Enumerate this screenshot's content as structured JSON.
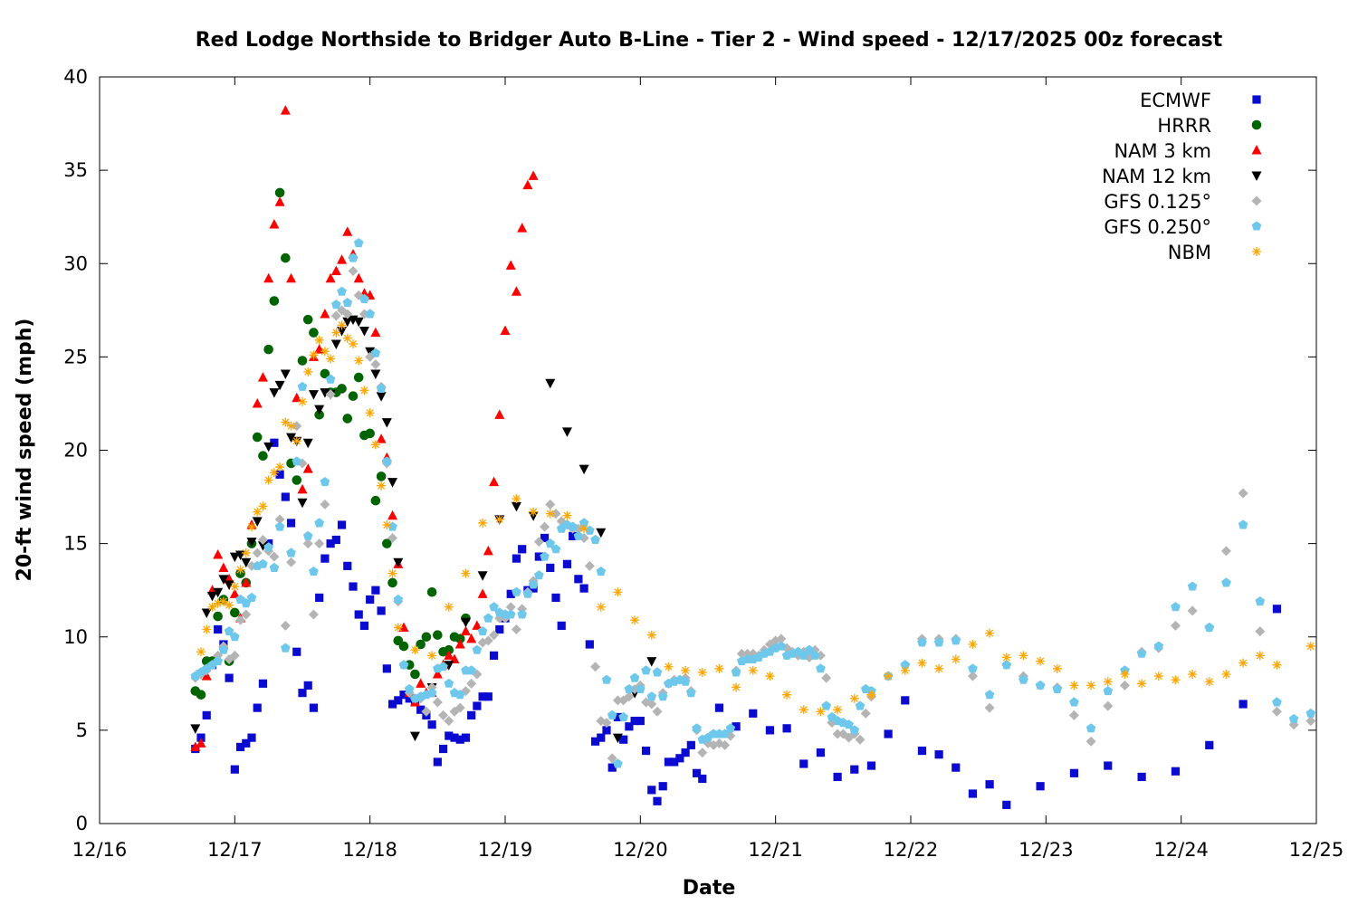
{
  "chart_data": {
    "type": "scatter",
    "title": "Red Lodge Northside to Bridger Auto B-Line - Tier 2 - Wind speed - 12/17/2025 00z forecast",
    "xlabel": "Date",
    "ylabel": "20-ft wind speed (mph)",
    "x_units": "hours since 12/16 00:00",
    "xlim": [
      0,
      216
    ],
    "ylim": [
      0,
      40
    ],
    "yticks": [
      "0",
      "5",
      "10",
      "15",
      "20",
      "25",
      "30",
      "35",
      "40"
    ],
    "xticks": [
      "12/16",
      "12/17",
      "12/18",
      "12/19",
      "12/20",
      "12/21",
      "12/22",
      "12/23",
      "12/24",
      "12/25"
    ],
    "grid": false,
    "legend_position": "top-right",
    "series": [
      {
        "name": "ECMWF",
        "marker": "square",
        "color": "#0a0ad0",
        "segments": [
          {
            "start": 17,
            "step": 1,
            "values": [
              4.0,
              4.6,
              5.8,
              8.5,
              10.4,
              9.6,
              7.8,
              2.9,
              4.1,
              4.3,
              4.6,
              6.2,
              7.5,
              15.0,
              20.4,
              18.7,
              17.5,
              16.1,
              9.2,
              7.0,
              7.4,
              6.2,
              12.1,
              14.2,
              15.0,
              15.2,
              16.0,
              13.8,
              12.7,
              11.2,
              10.6,
              12.0,
              12.5,
              11.4,
              8.3,
              6.4,
              6.6,
              6.9,
              6.7,
              6.5,
              6.1,
              5.8,
              5.3,
              3.3,
              4.0,
              4.7,
              4.6,
              4.5,
              4.6,
              5.8,
              6.3,
              6.8,
              6.8,
              9.0,
              10.4,
              11.0,
              12.3,
              14.2,
              14.7,
              12.5,
              12.6,
              14.3,
              15.3,
              13.7,
              12.1,
              10.6,
              13.9,
              15.4,
              13.1,
              12.6,
              9.6,
              4.4,
              4.6,
              5.0,
              3.0,
              5.7,
              4.5,
              5.2,
              5.5,
              5.5,
              3.9,
              1.8,
              1.2,
              2.0,
              3.3,
              3.3,
              3.5,
              3.8,
              4.2,
              2.7,
              2.4
            ]
          },
          {
            "start": 110,
            "step": 3,
            "values": [
              6.2,
              5.2,
              5.9,
              5.0,
              5.1,
              3.2,
              3.8,
              2.5,
              2.9,
              3.1,
              4.8,
              6.6,
              3.9,
              3.7,
              3.0,
              1.6,
              2.1,
              1.0
            ]
          },
          {
            "start": 167,
            "step": 6,
            "values": [
              2.0,
              2.7,
              3.1,
              2.5,
              2.8,
              4.2,
              6.4,
              11.5
            ]
          }
        ]
      },
      {
        "name": "HRRR",
        "marker": "circle",
        "color": "#006400",
        "segments": [
          {
            "start": 17,
            "step": 1,
            "values": [
              7.1,
              6.9,
              8.7,
              8.7,
              11.1,
              12.0,
              8.7,
              11.3,
              13.4,
              12.9,
              15.0,
              20.7,
              19.7,
              25.4,
              28.0,
              33.8,
              30.3,
              19.3,
              18.4,
              24.8,
              27.0,
              26.3,
              21.9,
              24.1,
              23.1,
              23.1,
              23.3,
              21.7,
              22.9,
              23.9,
              20.8,
              20.9,
              17.3,
              18.6,
              15.0,
              12.9,
              9.8,
              9.5,
              8.5,
              8.0,
              9.6,
              10.0,
              12.4,
              10.1,
              9.2,
              9.3,
              10.0,
              9.9,
              11.0
            ]
          }
        ]
      },
      {
        "name": "NAM 3 km",
        "marker": "triangle-up",
        "color": "#ff0000",
        "segments": [
          {
            "start": 17,
            "step": 1,
            "values": [
              4.1,
              4.3,
              7.9,
              12.5,
              14.4,
              13.7,
              13.1,
              12.3,
              11.0,
              12.9,
              16.0,
              22.5,
              23.9,
              29.2,
              32.1,
              33.3,
              38.2,
              29.2,
              22.8,
              17.9,
              19.0,
              25.0,
              25.4,
              27.3,
              29.2,
              29.6,
              30.2,
              31.7,
              30.5,
              29.2,
              28.4,
              28.3,
              26.3,
              20.6,
              19.6,
              16.5,
              13.9,
              10.5,
              7.0,
              6.5,
              7.5,
              7.0,
              7.0,
              8.0,
              8.5,
              9.0,
              8.8,
              9.6,
              10.3,
              9.9,
              10.6,
              12.3,
              14.6,
              18.3,
              21.9,
              26.4,
              29.9,
              28.5,
              31.9,
              34.2,
              34.7
            ]
          }
        ]
      },
      {
        "name": "NAM 12 km",
        "marker": "triangle-down",
        "color": "#000000",
        "segments": [
          {
            "start": 17,
            "step": 1,
            "values": [
              5.1,
              8.0,
              11.3,
              12.2,
              12.4,
              13.1,
              12.8,
              14.3,
              14.4,
              14.0,
              15.1,
              16.2,
              14.9,
              20.2,
              23.1,
              23.5,
              24.1,
              20.7,
              20.5,
              17.2,
              20.4,
              23.0,
              22.2,
              23.1,
              23.0,
              25.7,
              26.4,
              26.9,
              27.0,
              26.9,
              26.4,
              25.3,
              24.1,
              22.9,
              21.5,
              18.3,
              14.0
            ]
          },
          {
            "start": 56,
            "step": 3,
            "values": [
              4.7,
              7.3,
              8.5,
              10.8,
              13.3,
              16.3,
              17.0,
              16.5,
              23.6,
              21.0,
              19.0,
              15.6,
              4.6,
              7.0,
              8.7
            ]
          }
        ]
      },
      {
        "name": "GFS 0.125°",
        "marker": "diamond",
        "color": "#b4b4b4",
        "segments": [
          {
            "start": 17,
            "step": 1,
            "values": [
              7.8,
              8.0,
              8.2,
              8.5,
              9.0,
              9.5,
              8.8,
              9.0,
              10.9,
              11.2,
              13.8,
              14.5,
              15.2,
              14.6,
              14.3,
              16.3,
              10.6,
              14.0,
              21.3,
              19.3,
              15.0,
              11.2,
              15.0,
              17.1,
              23.0,
              27.2,
              27.5,
              27.3,
              29.6,
              28.3,
              27.3,
              25.0,
              24.6,
              23.4,
              19.3,
              15.3,
              11.9,
              8.5,
              7.0,
              6.7,
              6.7,
              6.0,
              7.3,
              6.5,
              5.8,
              5.5,
              6.0,
              6.2,
              7.1,
              7.5,
              8.0,
              9.7,
              9.8,
              10.1,
              11.0,
              11.0,
              11.6,
              10.4,
              11.5,
              12.4,
              13.0,
              15.1,
              15.9,
              17.1,
              16.6,
              16.2,
              16.0,
              15.8,
              15.8,
              15.3,
              13.8,
              8.4,
              5.5,
              5.4,
              3.5,
              6.6,
              6.6,
              6.8,
              7.2,
              7.4,
              6.5,
              6.4,
              6.0,
              7.0,
              7.5,
              7.7,
              7.7,
              7.8,
              7.1,
              5.0,
              3.8,
              4.3,
              4.2,
              4.3,
              4.2,
              4.7,
              8.2,
              9.1,
              9.1,
              9.1,
              9.0,
              9.3,
              9.6,
              9.8,
              9.9,
              9.4,
              9.2,
              9.0,
              9.2,
              8.9,
              9.3,
              9.0,
              7.8,
              5.4,
              4.8,
              4.8,
              4.6,
              4.8,
              4.5,
              5.9,
              6.8
            ]
          },
          {
            "start": 140,
            "step": 3,
            "values": [
              7.9,
              8.5,
              9.9,
              9.9,
              9.9,
              7.9,
              6.2,
              8.5,
              7.9,
              7.4,
              7.3,
              5.8,
              4.4,
              6.3,
              7.4,
              9.2,
              9.4,
              10.6,
              11.4,
              10.5,
              14.6,
              17.7,
              10.3,
              6.0,
              5.3,
              5.5
            ]
          }
        ]
      },
      {
        "name": "GFS 0.250°",
        "marker": "pentagon",
        "color": "#6ec8ec",
        "segments": [
          {
            "start": 17,
            "step": 1,
            "values": [
              7.9,
              8.1,
              8.3,
              8.5,
              8.7,
              9.3,
              10.3,
              10.0,
              12.0,
              11.8,
              12.1,
              13.8,
              13.9,
              14.8,
              13.7,
              15.9,
              9.4,
              14.5,
              19.4,
              23.4,
              15.4,
              13.5,
              16.1,
              18.3,
              23.8,
              27.8,
              28.5,
              27.9,
              30.3,
              31.1,
              28.1,
              27.3,
              25.2,
              23.3,
              19.4,
              15.9,
              12.0,
              8.5,
              7.2,
              6.7,
              6.8,
              6.9,
              7.0,
              8.3,
              8.4,
              7.5,
              7.0,
              6.9,
              8.2,
              8.2,
              9.3,
              10.3,
              11.0,
              11.6,
              11.3,
              11.2,
              11.2,
              12.4,
              11.2,
              12.3,
              12.8,
              13.3,
              14.3,
              15.0,
              14.7,
              15.8,
              16.0,
              15.9,
              15.4,
              16.1,
              15.7,
              15.2,
              13.5,
              7.7,
              5.8,
              3.2,
              5.7,
              7.2,
              7.8,
              7.2,
              8.2,
              6.8,
              8.1,
              6.8,
              7.5,
              7.6,
              7.7,
              7.6,
              7.0,
              5.1,
              4.5,
              4.6,
              4.8,
              4.8,
              4.8,
              5.1,
              8.1,
              8.7,
              8.8,
              8.8,
              8.9,
              9.1,
              9.2,
              9.4,
              9.5,
              9.0,
              9.1,
              9.2,
              9.0,
              9.3,
              9.0,
              8.3,
              6.3,
              5.7,
              5.5,
              5.4,
              5.3,
              5.0,
              6.3,
              7.2,
              7.1
            ]
          },
          {
            "start": 140,
            "step": 3,
            "values": [
              7.9,
              8.5,
              9.7,
              9.7,
              9.8,
              8.3,
              6.9,
              8.5,
              7.7,
              7.4,
              7.2,
              6.5,
              5.1,
              7.1,
              8.2,
              9.1,
              9.5,
              11.6,
              12.7,
              10.5,
              12.9,
              16.0,
              11.9,
              6.5,
              5.6,
              5.9
            ]
          }
        ]
      },
      {
        "name": "NBM",
        "marker": "asterisk",
        "color": "#ffa500",
        "segments": [
          {
            "start": 18,
            "step": 1,
            "values": [
              9.2,
              10.4,
              11.6,
              11.8,
              11.9,
              11.7,
              12.7,
              13.6,
              14.5,
              15.9,
              16.7,
              17.0,
              18.4,
              18.8,
              19.1,
              21.5,
              21.3,
              20.5,
              22.6,
              24.2,
              25.1,
              25.9,
              25.3,
              24.9,
              26.3,
              26.7,
              26.0,
              25.7,
              24.8,
              23.2,
              22.0,
              20.3,
              18.1,
              16.0,
              13.4,
              10.5
            ]
          },
          {
            "start": 56,
            "step": 3,
            "values": [
              9.3,
              9.0,
              11.6,
              13.4,
              16.1,
              16.3,
              17.4,
              16.7,
              16.6,
              16.5,
              15.8,
              11.6,
              12.4,
              10.9,
              10.1,
              8.4,
              8.2,
              8.1,
              8.3,
              7.3,
              8.2,
              7.9,
              6.9,
              6.1,
              6.0,
              6.1,
              6.7,
              6.9,
              7.9,
              8.2,
              8.6,
              8.3,
              8.8,
              9.6,
              10.2,
              8.9,
              9.0,
              8.7,
              8.3,
              7.4,
              7.4,
              7.6,
              8.0,
              7.5,
              7.9,
              7.7,
              8.0,
              7.6,
              8.0,
              8.6,
              9.0,
              8.5,
              null,
              9.5
            ]
          }
        ]
      }
    ]
  }
}
